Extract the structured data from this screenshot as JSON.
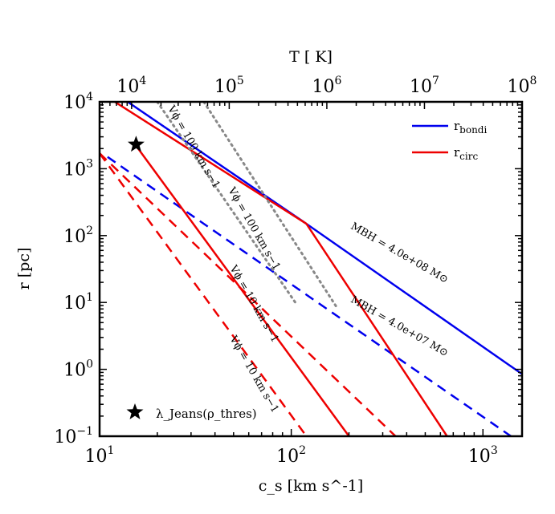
{
  "chart_data": {
    "type": "line",
    "scale": "log-log",
    "xlabel": "c_s [km s^-1]",
    "ylabel": "r [pc]",
    "top_xlabel": "T [ K]",
    "xlim": [
      10,
      1600
    ],
    "ylim": [
      0.1,
      10000
    ],
    "top_xlim": [
      4700,
      100000000
    ],
    "x_ticks": [
      {
        "value": 10,
        "base": "10",
        "exp": "1"
      },
      {
        "value": 100,
        "base": "10",
        "exp": "2"
      },
      {
        "value": 1000,
        "base": "10",
        "exp": "3"
      }
    ],
    "y_ticks": [
      {
        "value": 0.1,
        "base": "10",
        "exp": "−1"
      },
      {
        "value": 1,
        "base": "10",
        "exp": "0"
      },
      {
        "value": 10,
        "base": "10",
        "exp": "1"
      },
      {
        "value": 100,
        "base": "10",
        "exp": "2"
      },
      {
        "value": 1000,
        "base": "10",
        "exp": "3"
      },
      {
        "value": 10000,
        "base": "10",
        "exp": "4"
      }
    ],
    "top_ticks": [
      {
        "value": 10000,
        "base": "10",
        "exp": "4"
      },
      {
        "value": 100000,
        "base": "10",
        "exp": "5"
      },
      {
        "value": 1000000,
        "base": "10",
        "exp": "6"
      },
      {
        "value": 10000000,
        "base": "10",
        "exp": "7"
      },
      {
        "value": 100000000,
        "base": "10",
        "exp": "8"
      }
    ],
    "series": [
      {
        "name": "r_bondi (M_BH = 4.0e+08)",
        "legend": true,
        "color": "#0000ee",
        "dash": "solid",
        "points": [
          [
            14,
            10000
          ],
          [
            120,
            150
          ],
          [
            1600,
            0.85
          ]
        ]
      },
      {
        "name": "r_bondi (M_BH = 4.0e+07)",
        "legend": false,
        "color": "#0000ee",
        "dash": "dashed",
        "points": [
          [
            11,
            1500
          ],
          [
            35,
            150
          ],
          [
            1400,
            0.1
          ]
        ]
      },
      {
        "name": "r_circ (V_phi = 100 km s^-1)",
        "legend": true,
        "color": "#ee0000",
        "dash": "solid",
        "points": [
          [
            12,
            10000
          ],
          [
            120,
            150
          ],
          [
            650,
            0.1
          ]
        ]
      },
      {
        "name": "r_circ (V_phi = 10 km s^-1)",
        "legend": false,
        "color": "#ee0000",
        "dash": "solid",
        "points": [
          [
            15.5,
            2200
          ],
          [
            200,
            0.1
          ]
        ]
      },
      {
        "name": "r_circ dashed (V_phi = 100 km s^-1)",
        "legend": false,
        "color": "#ee0000",
        "dash": "dashed",
        "points": [
          [
            10,
            1700
          ],
          [
            350,
            0.1
          ]
        ]
      },
      {
        "name": "r_circ dashed (V_phi = 10 km s^-1)",
        "legend": false,
        "color": "#ee0000",
        "dash": "dashed",
        "points": [
          [
            10,
            1700
          ],
          [
            120,
            0.1
          ]
        ]
      },
      {
        "name": "V_phi = 100 km s^-1 reference",
        "legend": false,
        "color": "#888888",
        "dash": "dotted",
        "points": [
          [
            35,
            10000
          ],
          [
            175,
            8
          ]
        ]
      },
      {
        "name": "V_phi = 100 km s^-1 reference 2",
        "legend": false,
        "color": "#888888",
        "dash": "dotted",
        "points": [
          [
            20,
            10000
          ],
          [
            105,
            10
          ]
        ]
      }
    ],
    "legend": {
      "placement": "top-right",
      "entries": [
        {
          "label": "r",
          "sub": "bondi",
          "color": "#0000ee"
        },
        {
          "label": "r",
          "sub": "circ",
          "color": "#ee0000"
        }
      ]
    },
    "markers": [
      {
        "name": "lambda-jeans-point",
        "x": 15.5,
        "y": 2300,
        "symbol": "star"
      }
    ],
    "marker_legend": {
      "symbol": "★",
      "label": "λ_Jeans(ρ_thres)"
    },
    "annotations": [
      {
        "text": "Vϕ = 100 km s−1",
        "x": 30,
        "y": 2000,
        "rotation": 60
      },
      {
        "text": "Vϕ = 100 km s−1",
        "x": 62,
        "y": 120,
        "rotation": 60
      },
      {
        "text": "Vϕ = 10 km s−1",
        "x": 62,
        "y": 9,
        "rotation": 60
      },
      {
        "text": "Vϕ = 10 km s−1",
        "x": 62,
        "y": 0.8,
        "rotation": 60
      },
      {
        "text": "MBH = 4.0e+08 M⊙",
        "x": 360,
        "y": 50,
        "rotation": 30
      },
      {
        "text": "MBH = 4.0e+07 M⊙",
        "x": 360,
        "y": 4,
        "rotation": 30
      }
    ]
  }
}
